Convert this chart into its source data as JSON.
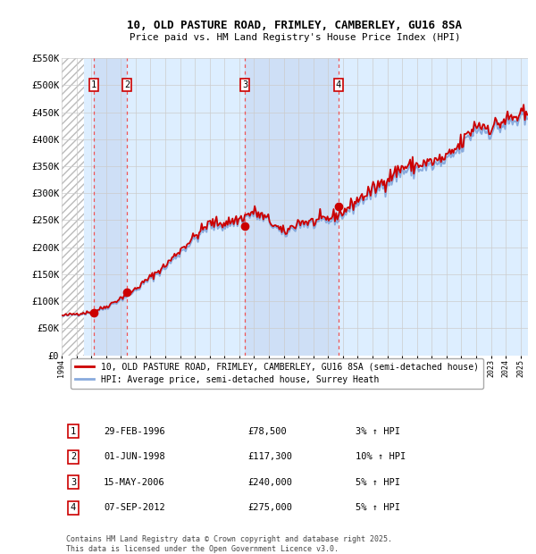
{
  "title": "10, OLD PASTURE ROAD, FRIMLEY, CAMBERLEY, GU16 8SA",
  "subtitle": "Price paid vs. HM Land Registry's House Price Index (HPI)",
  "ylim": [
    0,
    550000
  ],
  "yticks": [
    0,
    50000,
    100000,
    150000,
    200000,
    250000,
    300000,
    350000,
    400000,
    450000,
    500000,
    550000
  ],
  "ytick_labels": [
    "£0",
    "£50K",
    "£100K",
    "£150K",
    "£200K",
    "£250K",
    "£300K",
    "£350K",
    "£400K",
    "£450K",
    "£500K",
    "£550K"
  ],
  "xlim_start": 1994.0,
  "xlim_end": 2025.5,
  "background_color": "#ffffff",
  "plot_bg_color": "#ddeeff",
  "grid_color": "#cccccc",
  "red_line_color": "#cc0000",
  "blue_line_color": "#88aadd",
  "vline_color": "#ee5555",
  "shade_color": "#ccddf5",
  "transactions": [
    {
      "num": 1,
      "date": "29-FEB-1996",
      "year": 1996.16,
      "price": 78500,
      "pct": "3%",
      "label": "1"
    },
    {
      "num": 2,
      "date": "01-JUN-1998",
      "year": 1998.42,
      "price": 117300,
      "pct": "10%",
      "label": "2"
    },
    {
      "num": 3,
      "date": "15-MAY-2006",
      "year": 2006.37,
      "price": 240000,
      "pct": "5%",
      "label": "3"
    },
    {
      "num": 4,
      "date": "07-SEP-2012",
      "year": 2012.69,
      "price": 275000,
      "pct": "5%",
      "label": "4"
    }
  ],
  "legend_line1": "10, OLD PASTURE ROAD, FRIMLEY, CAMBERLEY, GU16 8SA (semi-detached house)",
  "legend_line2": "HPI: Average price, semi-detached house, Surrey Heath",
  "footer": "Contains HM Land Registry data © Crown copyright and database right 2025.\nThis data is licensed under the Open Government Licence v3.0."
}
